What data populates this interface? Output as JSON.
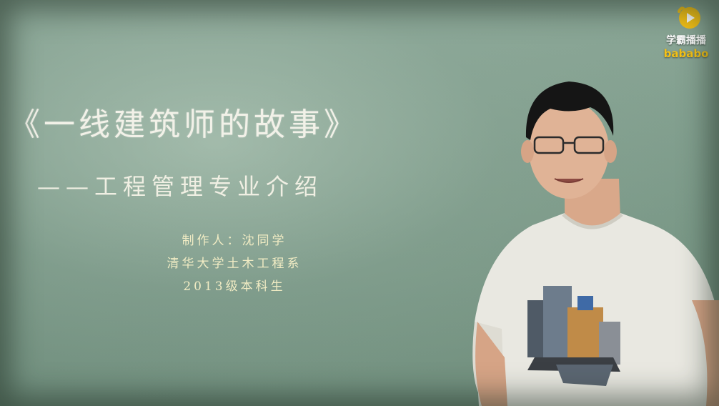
{
  "slide": {
    "title": "《一线建筑师的故事》",
    "subtitle": "——工程管理专业介绍",
    "credits": [
      "制作人：沈同学",
      "清华大学土木工程系",
      "2013级本科生"
    ]
  },
  "logo": {
    "name": "学霸播播",
    "sub": "bababo",
    "icon": "hand-play-icon",
    "colors": {
      "mark": "#f5c116",
      "text": "#ffffff"
    }
  },
  "colors": {
    "board": "#7d9b8a",
    "chalk": "#f2f1e8",
    "chalk_yellow": "#f1ecc4"
  }
}
